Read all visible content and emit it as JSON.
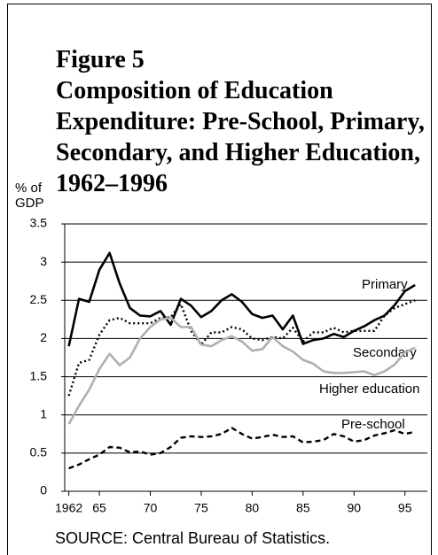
{
  "chart_data": {
    "type": "line",
    "title": "Figure 5",
    "subtitle": "Composition of Education Expenditure: Pre-School, Primary, Secondary, and Higher Education, 1962–1996",
    "y_label": "% of GDP",
    "source": "SOURCE: Central Bureau of Statistics.",
    "x": [
      1962,
      1963,
      1964,
      1965,
      1966,
      1967,
      1968,
      1969,
      1970,
      1971,
      1972,
      1973,
      1974,
      1975,
      1976,
      1977,
      1978,
      1979,
      1980,
      1981,
      1982,
      1983,
      1984,
      1985,
      1986,
      1987,
      1988,
      1989,
      1990,
      1991,
      1992,
      1993,
      1994,
      1995,
      1996
    ],
    "series": [
      {
        "name": "Primary",
        "color": "#000000",
        "line_style": "solid",
        "values": [
          1.9,
          2.52,
          2.48,
          2.9,
          3.12,
          2.72,
          2.4,
          2.3,
          2.29,
          2.36,
          2.18,
          2.52,
          2.43,
          2.28,
          2.36,
          2.5,
          2.58,
          2.48,
          2.32,
          2.27,
          2.3,
          2.12,
          2.3,
          1.93,
          1.98,
          2.0,
          2.06,
          2.02,
          2.1,
          2.16,
          2.24,
          2.3,
          2.44,
          2.62,
          2.7
        ]
      },
      {
        "name": "Secondary",
        "color": "#000000",
        "line_style": "dotted",
        "values": [
          1.25,
          1.68,
          1.72,
          2.05,
          2.24,
          2.27,
          2.2,
          2.2,
          2.2,
          2.27,
          2.28,
          2.45,
          2.1,
          1.92,
          2.08,
          2.08,
          2.15,
          2.12,
          2.0,
          1.98,
          2.02,
          2.0,
          2.14,
          1.96,
          2.08,
          2.08,
          2.14,
          2.08,
          2.1,
          2.1,
          2.1,
          2.3,
          2.4,
          2.45,
          2.5
        ]
      },
      {
        "name": "Higher education",
        "color": "#b0b0b0",
        "line_style": "solid",
        "values": [
          0.88,
          1.12,
          1.33,
          1.6,
          1.8,
          1.65,
          1.75,
          2.0,
          2.15,
          2.25,
          2.27,
          2.15,
          2.15,
          1.92,
          1.9,
          1.98,
          2.03,
          1.96,
          1.84,
          1.86,
          2.02,
          1.9,
          1.83,
          1.72,
          1.67,
          1.57,
          1.55,
          1.55,
          1.56,
          1.57,
          1.52,
          1.57,
          1.66,
          1.82,
          1.88
        ]
      },
      {
        "name": "Pre-school",
        "color": "#000000",
        "line_style": "dashed",
        "values": [
          0.3,
          0.35,
          0.42,
          0.48,
          0.58,
          0.57,
          0.51,
          0.52,
          0.48,
          0.5,
          0.58,
          0.7,
          0.72,
          0.71,
          0.72,
          0.75,
          0.83,
          0.75,
          0.69,
          0.71,
          0.74,
          0.71,
          0.72,
          0.64,
          0.65,
          0.67,
          0.75,
          0.72,
          0.65,
          0.67,
          0.73,
          0.76,
          0.8,
          0.75,
          0.78
        ]
      }
    ],
    "xlim": [
      1961.6,
      1997.2
    ],
    "xticks": [
      1962,
      {
        "value": 1965,
        "label": "65"
      },
      {
        "value": 1970,
        "label": "70"
      },
      {
        "value": 1975,
        "label": "75"
      },
      {
        "value": 1980,
        "label": "80"
      },
      {
        "value": 1985,
        "label": "85"
      },
      {
        "value": 1990,
        "label": "90"
      },
      {
        "value": 1995,
        "label": "95"
      }
    ],
    "ylim": [
      0,
      3.5
    ],
    "yticks": [
      0,
      0.5,
      1.0,
      1.5,
      2.0,
      2.5,
      3.0,
      3.5
    ],
    "grid": true
  }
}
